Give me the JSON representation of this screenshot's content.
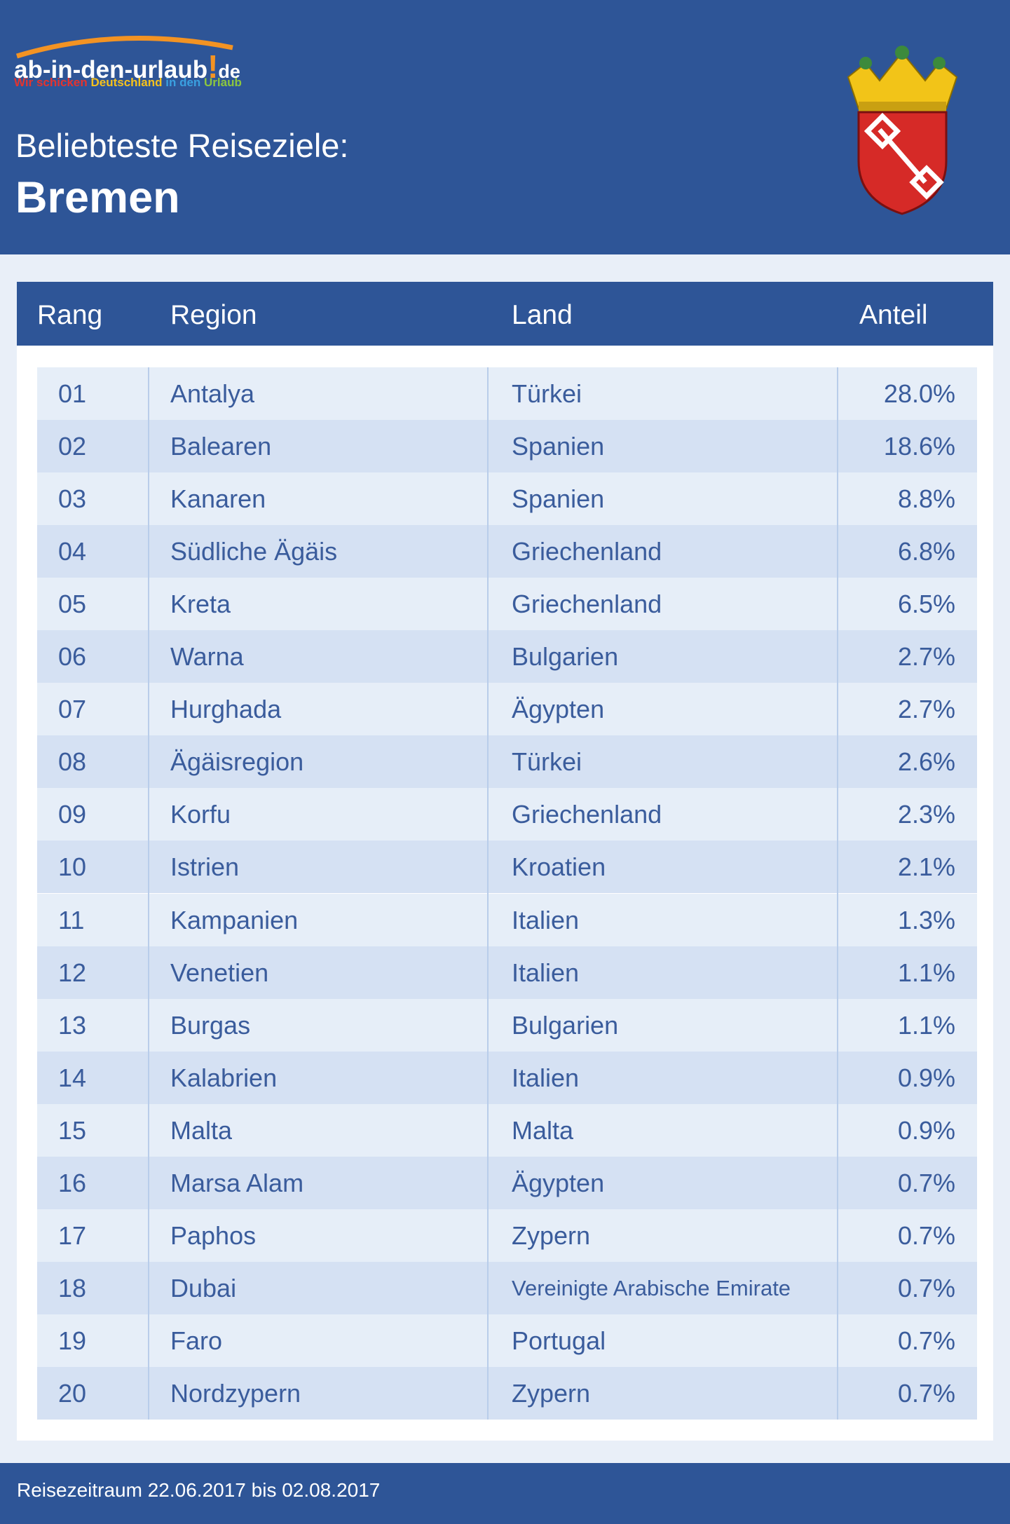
{
  "logo": {
    "name": "ab-in-den-urlaub",
    "domain": "de",
    "tagline": [
      "Wir schicken",
      "Deutschland",
      "in den",
      "Urlaub"
    ]
  },
  "header": {
    "subtitle": "Beliebteste Reiseziele:",
    "title": "Bremen"
  },
  "table": {
    "columns": [
      "Rang",
      "Region",
      "Land",
      "Anteil"
    ],
    "rows": [
      [
        "01",
        "Antalya",
        "Türkei",
        "28.0%"
      ],
      [
        "02",
        "Balearen",
        "Spanien",
        "18.6%"
      ],
      [
        "03",
        "Kanaren",
        "Spanien",
        "8.8%"
      ],
      [
        "04",
        "Südliche Ägäis",
        "Griechenland",
        "6.8%"
      ],
      [
        "05",
        "Kreta",
        "Griechenland",
        "6.5%"
      ],
      [
        "06",
        "Warna",
        "Bulgarien",
        "2.7%"
      ],
      [
        "07",
        "Hurghada",
        "Ägypten",
        "2.7%"
      ],
      [
        "08",
        "Ägäisregion",
        "Türkei",
        "2.6%"
      ],
      [
        "09",
        "Korfu",
        "Griechenland",
        "2.3%"
      ],
      [
        "10",
        "Istrien",
        "Kroatien",
        "2.1%"
      ],
      [
        "11",
        "Kampanien",
        "Italien",
        "1.3%"
      ],
      [
        "12",
        "Venetien",
        "Italien",
        "1.1%"
      ],
      [
        "13",
        "Burgas",
        "Bulgarien",
        "1.1%"
      ],
      [
        "14",
        "Kalabrien",
        "Italien",
        "0.9%"
      ],
      [
        "15",
        "Malta",
        "Malta",
        "0.9%"
      ],
      [
        "16",
        "Marsa Alam",
        "Ägypten",
        "0.7%"
      ],
      [
        "17",
        "Paphos",
        "Zypern",
        "0.7%"
      ],
      [
        "18",
        "Dubai",
        "Vereinigte Arabische Emirate",
        "0.7%"
      ],
      [
        "19",
        "Faro",
        "Portugal",
        "0.7%"
      ],
      [
        "20",
        "Nordzypern",
        "Zypern",
        "0.7%"
      ]
    ]
  },
  "footer": {
    "text": "Reisezeitraum 22.06.2017 bis 02.08.2017"
  }
}
